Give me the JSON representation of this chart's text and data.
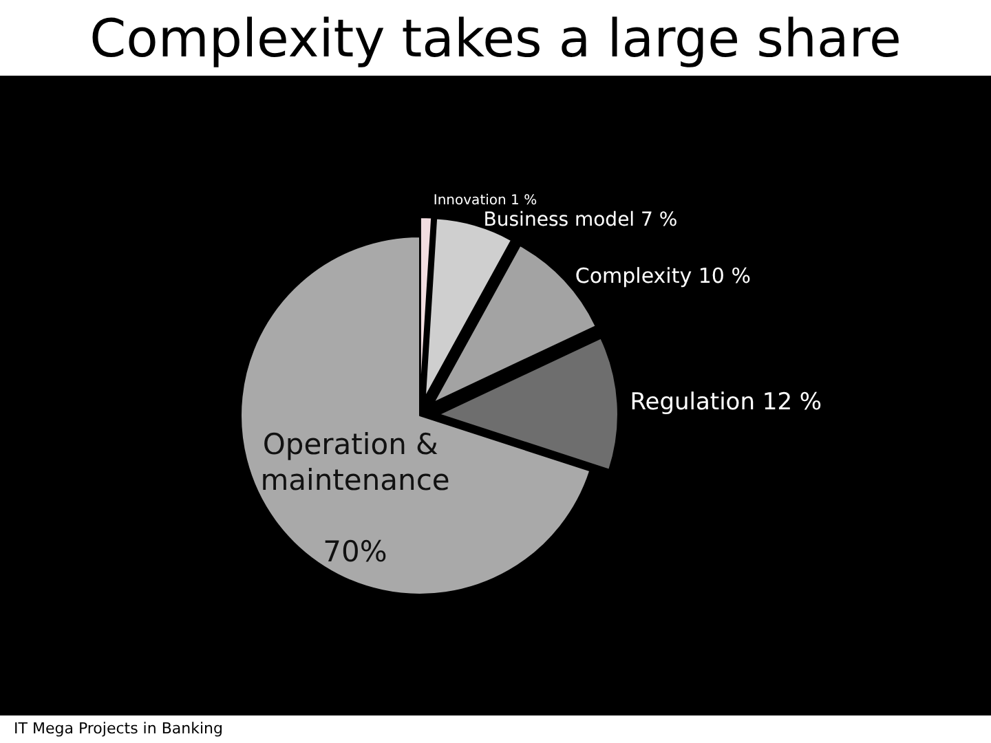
{
  "chart_data": {
    "type": "pie",
    "title": "Complexity takes a large share",
    "categories": [
      "Innovation",
      "Business model",
      "Complexity",
      "Regulation",
      "Operation & maintenance"
    ],
    "values": [
      1,
      7,
      10,
      12,
      70
    ],
    "value_labels": [
      "1 %",
      "7 %",
      "10 %",
      "12 %",
      "70%"
    ],
    "colors": [
      "#f2dde0",
      "#cfcfcf",
      "#a3a3a3",
      "#6e6e6e",
      "#a9a9a9"
    ],
    "legend": false,
    "annotations": [
      "IT Mega Projects in Banking"
    ]
  }
}
